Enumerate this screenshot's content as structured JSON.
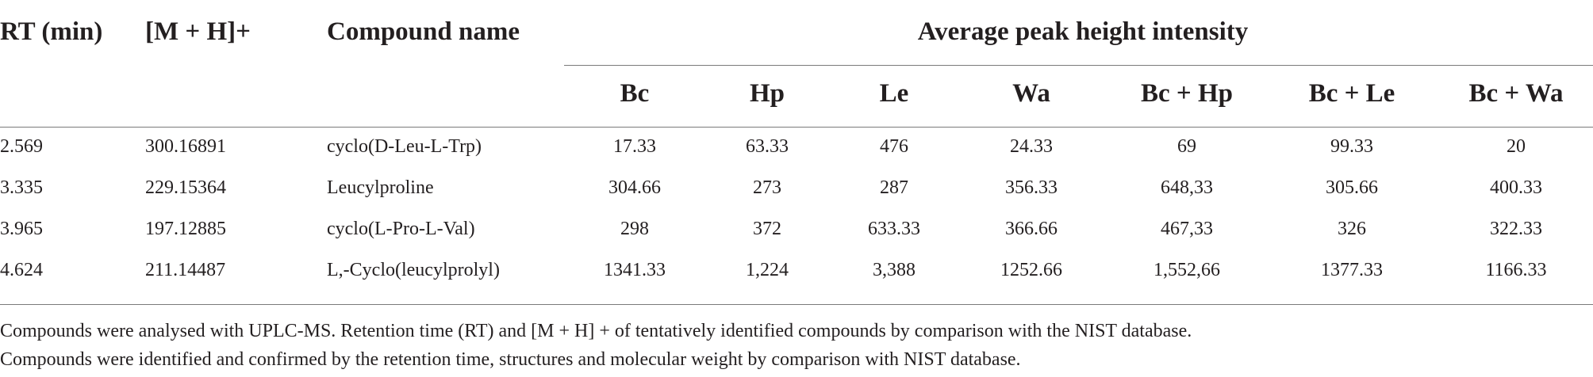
{
  "table": {
    "headers": [
      "RT (min)",
      "[M + H]+",
      "Compound name"
    ],
    "group_header": "Average peak height intensity",
    "subheaders": [
      "Bc",
      "Hp",
      "Le",
      "Wa",
      "Bc + Hp",
      "Bc + Le",
      "Bc + Wa"
    ],
    "rows": [
      [
        "2.569",
        "300.16891",
        "cyclo(D-Leu-L-Trp)",
        "17.33",
        "63.33",
        "476",
        "24.33",
        "69",
        "99.33",
        "20"
      ],
      [
        "3.335",
        "229.15364",
        "Leucylproline",
        "304.66",
        "273",
        "287",
        "356.33",
        "648,33",
        "305.66",
        "400.33"
      ],
      [
        "3.965",
        "197.12885",
        "cyclo(L-Pro-L-Val)",
        "298",
        "372",
        "633.33",
        "366.66",
        "467,33",
        "326",
        "322.33"
      ],
      [
        "4.624",
        "211.14487",
        "L,-Cyclo(leucylprolyl)",
        "1341.33",
        "1,224",
        "3,388",
        "1252.66",
        "1,552,66",
        "1377.33",
        "1166.33"
      ]
    ]
  },
  "footnotes": [
    "Compounds were analysed with UPLC-MS. Retention time (RT) and [M + H] + of tentatively identified compounds by comparison with the NIST database.",
    "Compounds were identified and confirmed by the retention time, structures and molecular weight by comparison with NIST database."
  ]
}
